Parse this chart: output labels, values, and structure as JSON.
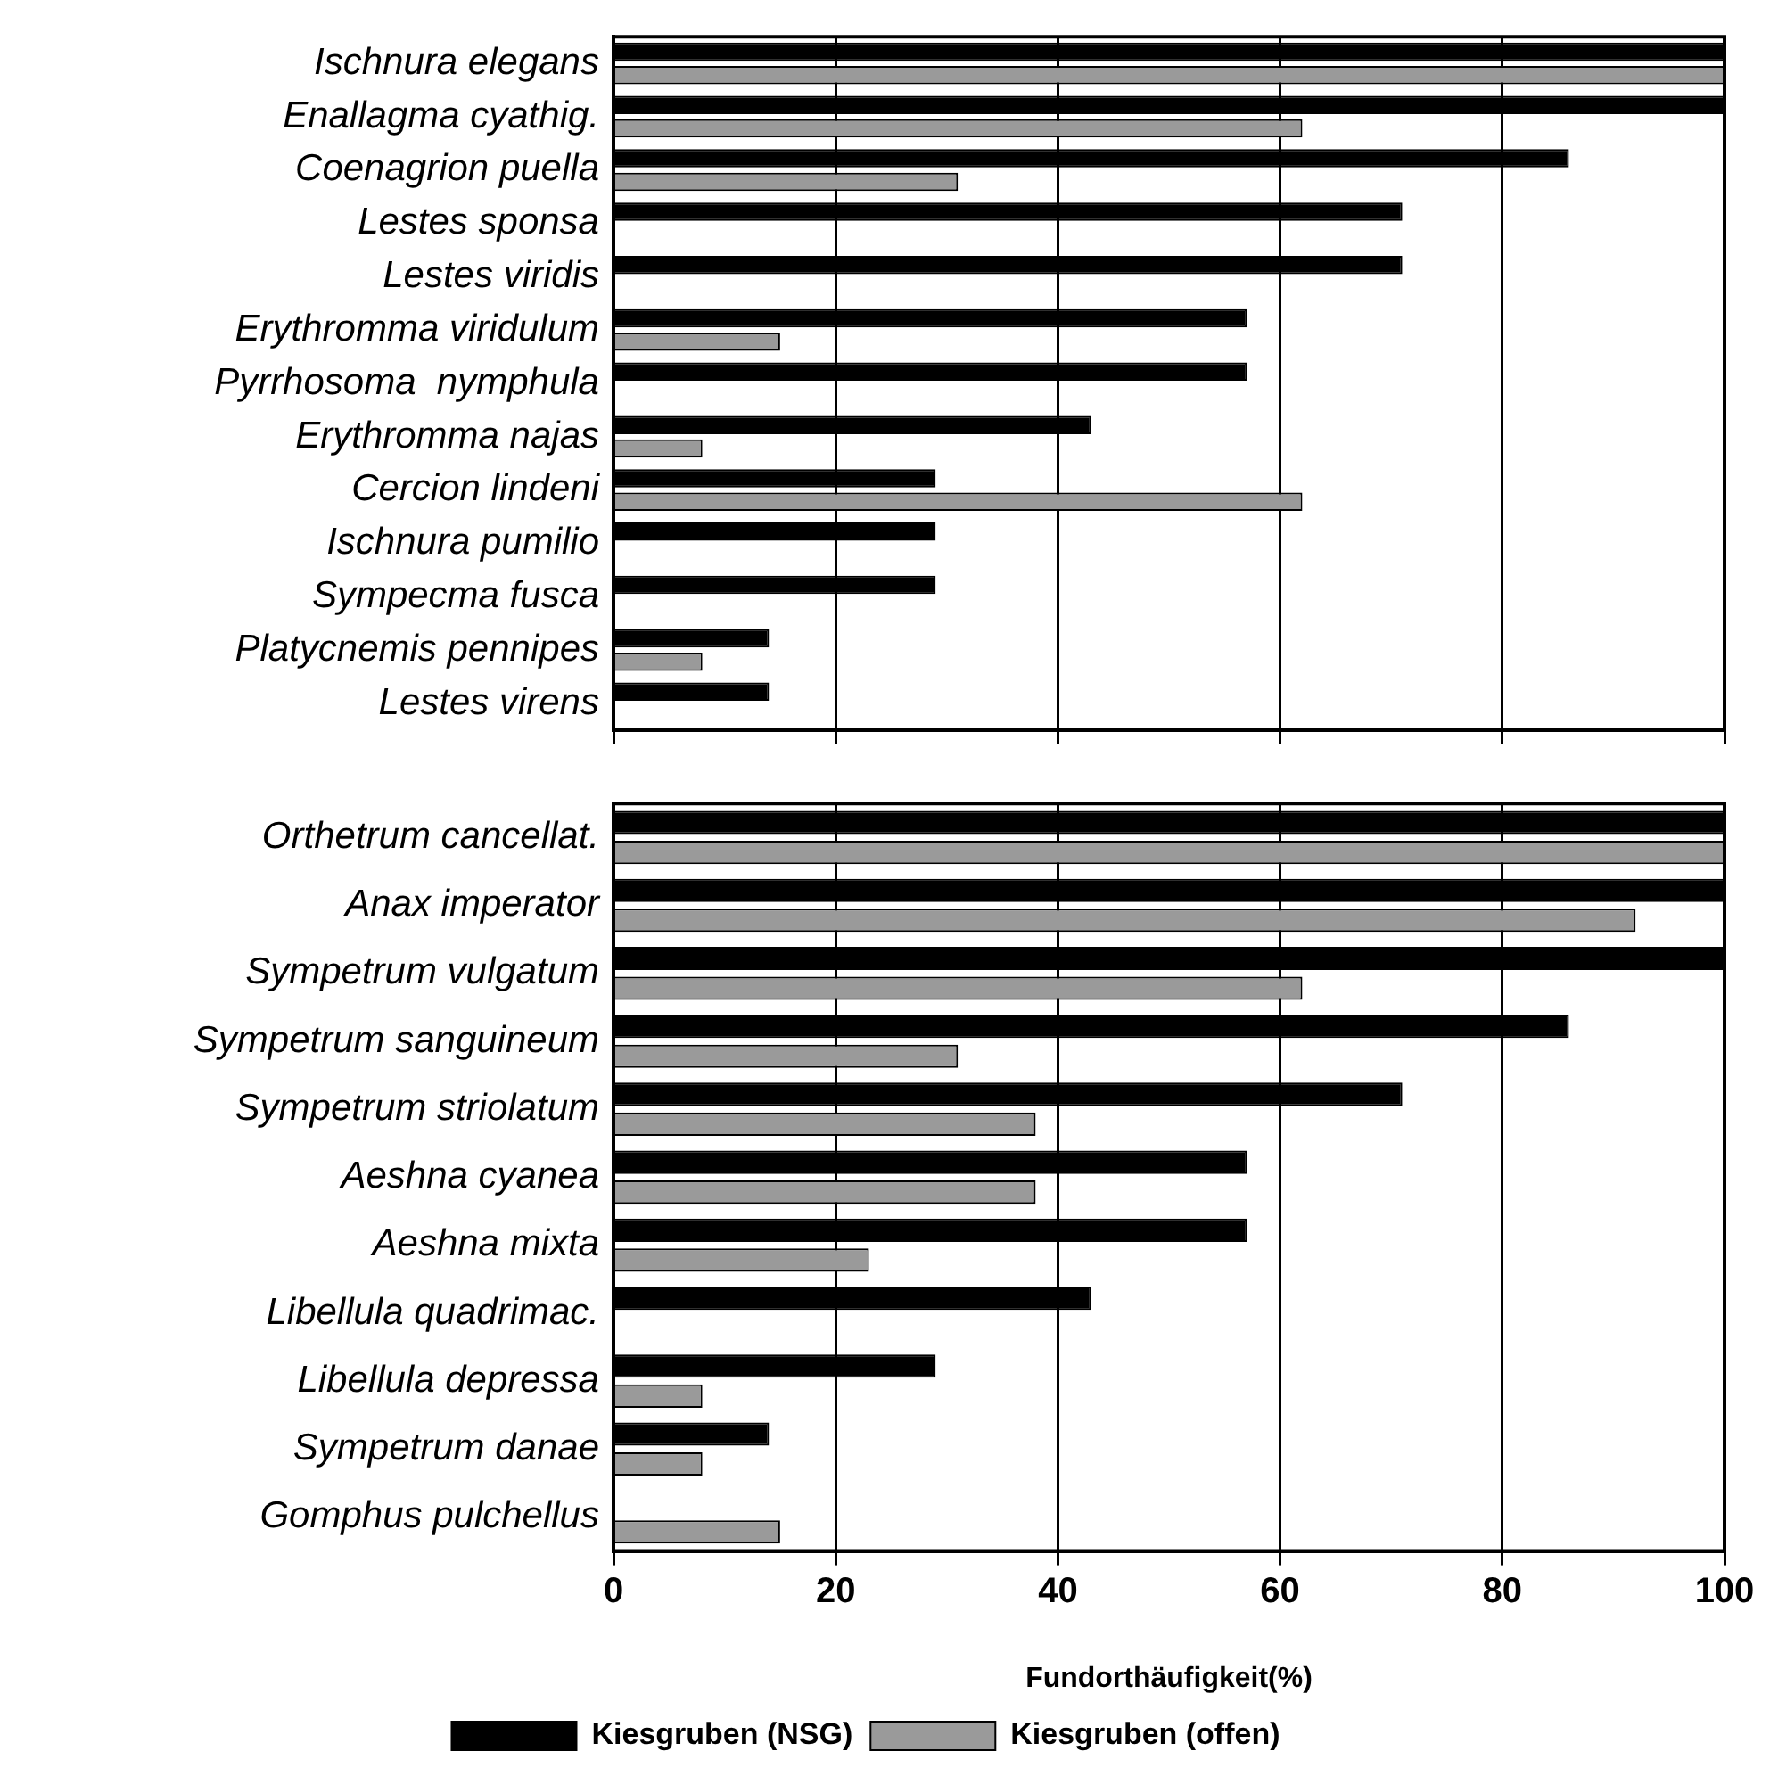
{
  "chart_data": [
    {
      "type": "bar",
      "orientation": "horizontal",
      "categories": [
        "Ischnura elegans",
        "Enallagma cyathig.",
        "Coenagrion puella",
        "Lestes sponsa",
        "Lestes viridis",
        "Erythromma viridulum",
        "Pyrrhosoma  nymphula",
        "Erythromma najas",
        "Cercion lindeni",
        "Ischnura pumilio",
        "Sympecma fusca",
        "Platycnemis pennipes",
        "Lestes virens"
      ],
      "series": [
        {
          "color": "#000000",
          "values": [
            100,
            100,
            86,
            71,
            71,
            57,
            57,
            43,
            29,
            29,
            29,
            14,
            14
          ]
        },
        {
          "color": "#9a9a9a",
          "values": [
            100,
            62,
            31,
            null,
            null,
            15,
            null,
            8,
            62,
            null,
            null,
            8,
            null
          ]
        }
      ],
      "xlim": [
        0,
        100
      ],
      "xticks": [
        0,
        20,
        40,
        60,
        80,
        100
      ],
      "grid": "x",
      "legend": false,
      "tick_labels": "y"
    },
    {
      "type": "bar",
      "orientation": "horizontal",
      "categories": [
        "Orthetrum cancellat.",
        "Anax imperator",
        "Sympetrum vulgatum",
        "Sympetrum sanguineum",
        "Sympetrum striolatum",
        "Aeshna cyanea",
        "Aeshna mixta",
        "Libellula quadrimac.",
        "Libellula depressa",
        "Sympetrum danae",
        "Gomphus pulchellus"
      ],
      "series": [
        {
          "name": "Kiesgruben (NSG)",
          "color": "#000000",
          "values": [
            100,
            100,
            100,
            86,
            71,
            57,
            57,
            43,
            29,
            14,
            null
          ]
        },
        {
          "name": "Kiesgruben (offen)",
          "color": "#9a9a9a",
          "values": [
            100,
            92,
            62,
            31,
            38,
            38,
            23,
            null,
            8,
            8,
            15
          ]
        }
      ],
      "xlim": [
        0,
        100
      ],
      "xticks": [
        0,
        20,
        40,
        60,
        80,
        100
      ],
      "grid": "x",
      "legend": "bottom",
      "xlabel": "Fundorthäufigkeit(%)"
    }
  ]
}
